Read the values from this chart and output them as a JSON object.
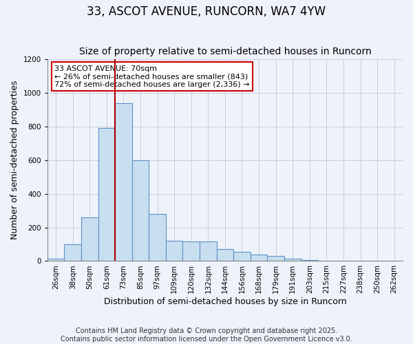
{
  "title": "33, ASCOT AVENUE, RUNCORN, WA7 4YW",
  "subtitle": "Size of property relative to semi-detached houses in Runcorn",
  "xlabel": "Distribution of semi-detached houses by size in Runcorn",
  "ylabel": "Number of semi-detached properties",
  "bins": [
    "26sqm",
    "38sqm",
    "50sqm",
    "61sqm",
    "73sqm",
    "85sqm",
    "97sqm",
    "109sqm",
    "120sqm",
    "132sqm",
    "144sqm",
    "156sqm",
    "168sqm",
    "179sqm",
    "191sqm",
    "203sqm",
    "215sqm",
    "227sqm",
    "238sqm",
    "250sqm",
    "262sqm"
  ],
  "values": [
    15,
    100,
    260,
    790,
    940,
    600,
    280,
    120,
    115,
    115,
    70,
    55,
    40,
    30,
    15,
    5,
    3,
    2,
    2,
    0,
    3
  ],
  "bar_color": "#c8dff0",
  "bar_edge_color": "#5b8fc9",
  "marker_line_color": "#aa0000",
  "marker_bin_index": 3.5,
  "annotation_title": "33 ASCOT AVENUE: 70sqm",
  "annotation_line1": "← 26% of semi-detached houses are smaller (843)",
  "annotation_line2": "72% of semi-detached houses are larger (2,336) →",
  "annotation_box_color": "#ffffff",
  "annotation_border_color": "#cc0000",
  "ylim": [
    0,
    1200
  ],
  "yticks": [
    0,
    200,
    400,
    600,
    800,
    1000,
    1200
  ],
  "footnote1": "Contains HM Land Registry data © Crown copyright and database right 2025.",
  "footnote2": "Contains public sector information licensed under the Open Government Licence v3.0.",
  "background_color": "#eef2fb",
  "plot_background": "#eef2fb",
  "title_fontsize": 12,
  "subtitle_fontsize": 10,
  "axis_label_fontsize": 9,
  "tick_fontsize": 7.5,
  "annotation_fontsize": 8,
  "footnote_fontsize": 7
}
